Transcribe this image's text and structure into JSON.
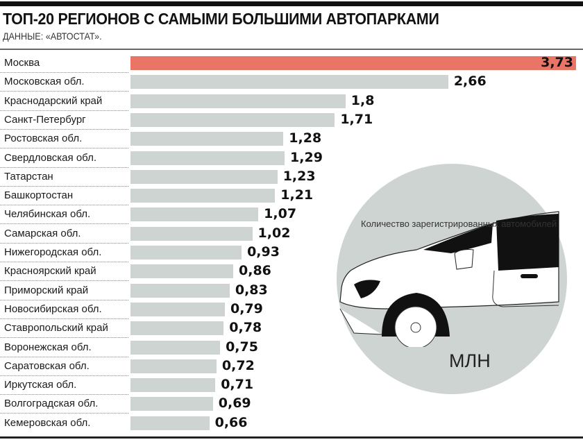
{
  "header": {
    "title": "ТОП-20 РЕГИОНОВ С САМЫМИ БОЛЬШИМИ АВТОПАРКАМИ",
    "subtitle": "ДАННЫЕ: «АВТОСТАТ»."
  },
  "illustration": {
    "note": "Количество зарегистрированных автомобилей",
    "unit": "МЛН",
    "icon": "car-illustration"
  },
  "colors": {
    "highlight": "#e87565",
    "bar": "#cdd4d2",
    "circle": "#cdd4d2"
  },
  "chart_data": {
    "type": "bar",
    "orientation": "horizontal",
    "title": "ТОП-20 РЕГИОНОВ С САМЫМИ БОЛЬШИМИ АВТОПАРКАМИ",
    "xlim": [
      0,
      3.73
    ],
    "grid": false,
    "categories": [
      "Москва",
      "Московская обл.",
      "Краснодарский край",
      "Санкт-Петербург",
      "Ростовская обл.",
      "Свердловская обл.",
      "Татарстан",
      "Башкортостан",
      "Челябинская обл.",
      "Самарская обл.",
      "Нижегородская обл.",
      "Красноярский край",
      "Приморский край",
      "Новосибирская обл.",
      "Ставропольский край",
      "Воронежская обл.",
      "Саратовская обл.",
      "Иркутская обл.",
      "Волгоградская обл.",
      "Кемеровская обл."
    ],
    "values": [
      3.73,
      2.66,
      1.8,
      1.71,
      1.28,
      1.29,
      1.23,
      1.21,
      1.07,
      1.02,
      0.93,
      0.86,
      0.83,
      0.79,
      0.78,
      0.75,
      0.72,
      0.71,
      0.69,
      0.66
    ],
    "value_labels": [
      "3,73",
      "2,66",
      "1,8",
      "1,71",
      "1,28",
      "1,29",
      "1,23",
      "1,21",
      "1,07",
      "1,02",
      "0,93",
      "0,86",
      "0,83",
      "0,79",
      "0,78",
      "0,75",
      "0,72",
      "0,71",
      "0,69",
      "0,66"
    ],
    "highlight_index": 0
  }
}
